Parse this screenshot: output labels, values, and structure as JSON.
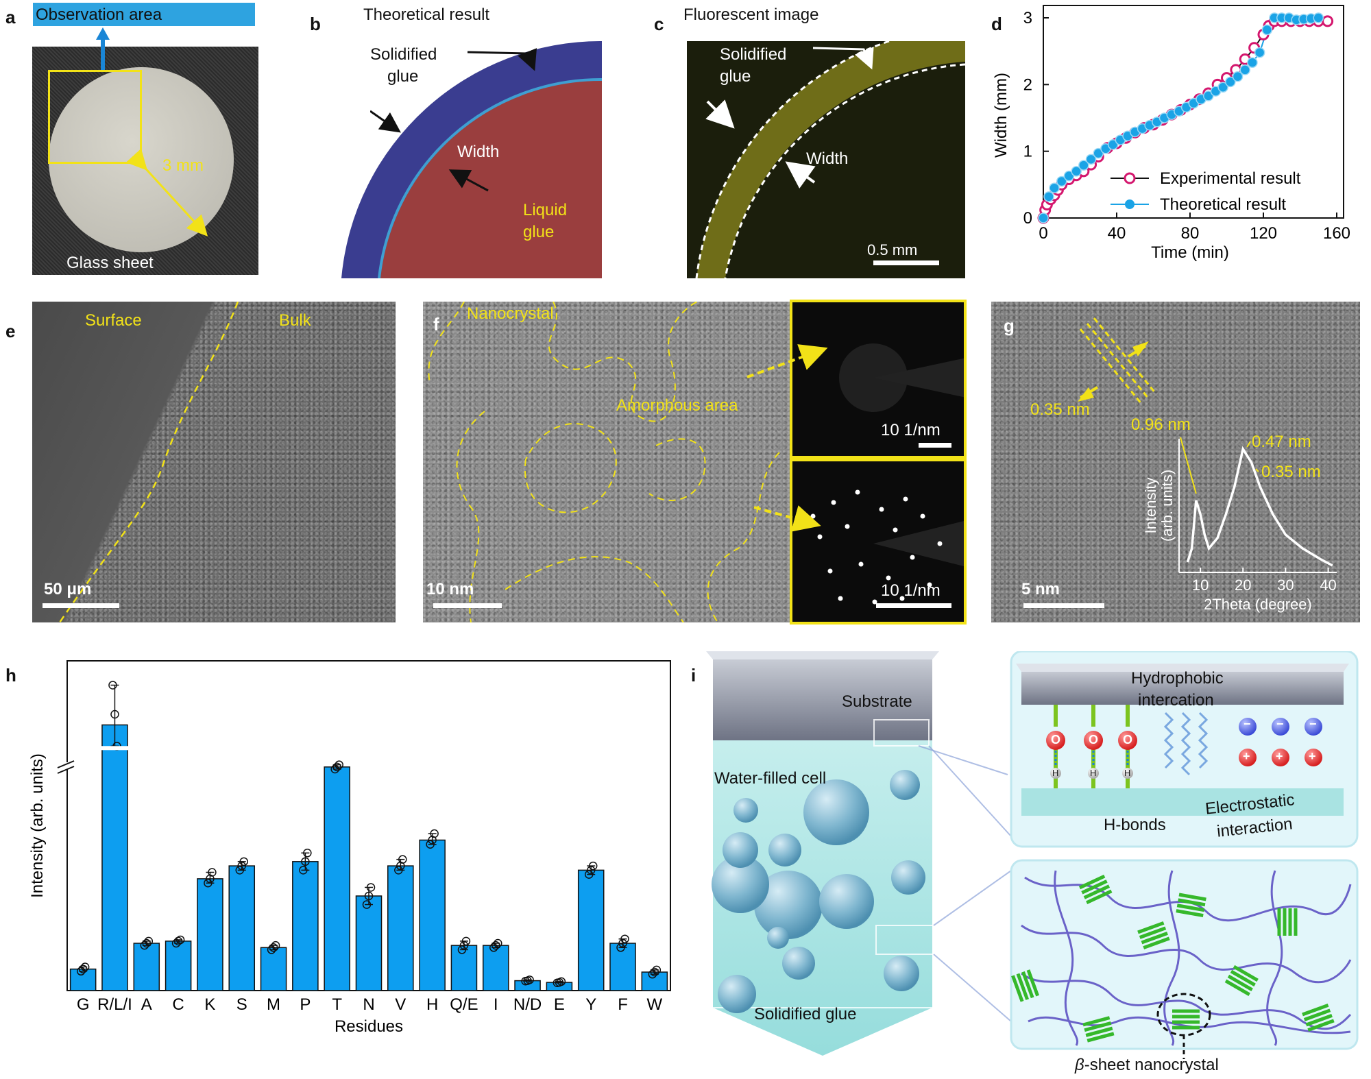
{
  "panels": {
    "a": {
      "label": "a",
      "obs_area": "Observation area",
      "radius": "3 mm",
      "sheet": "Glass sheet"
    },
    "b": {
      "label": "b",
      "title": "Theoretical result",
      "solidified": [
        "Solidified",
        "glue"
      ],
      "width": "Width",
      "liquid": [
        "Liquid",
        "glue"
      ]
    },
    "c": {
      "label": "c",
      "title": "Fluorescent image",
      "solidified": [
        "Solidified",
        "glue"
      ],
      "width": "Width",
      "scalebar": "0.5 mm"
    },
    "d": {
      "label": "d"
    },
    "e": {
      "label": "e",
      "surface": "Surface",
      "bulk": "Bulk",
      "scalebar": "50 μm"
    },
    "f": {
      "label": "f",
      "nanocrystal": "Nanocrystal",
      "amorphous": "Amorphous area",
      "scalebar": "10 nm",
      "saed_top": "10 1/nm",
      "saed_bottom": "10 1/nm"
    },
    "g": {
      "label": "g",
      "spacing_main": "0.35 nm",
      "peak1": "0.96 nm",
      "peak2": "0.47 nm",
      "peak3": "0.35 nm",
      "inset_ylabel": [
        "Intensity",
        "(arb. units)"
      ],
      "inset_xlabel": "2Theta (degree)",
      "inset_ticks": [
        "10",
        "20",
        "30",
        "40"
      ],
      "scalebar": "5 nm"
    },
    "h": {
      "label": "h"
    },
    "i": {
      "label": "i",
      "substrate": "Substrate",
      "water_cell": "Water-filled cell",
      "solid_glue": "Solidified glue",
      "hydrophobic": [
        "Hydrophobic",
        "intercation"
      ],
      "hbonds": "H-bonds",
      "electrostatic": [
        "Electrostatic",
        "interaction"
      ],
      "beta_sheet": "-sheet nanocrystal",
      "beta_symbol": "β",
      "atom_o": "O",
      "atom_h": "H",
      "minus": "−",
      "plus": "+"
    }
  },
  "chart_data": [
    {
      "panel": "d",
      "type": "line",
      "xlabel": "Time (min)",
      "ylabel": "Width (mm)",
      "xlim": [
        0,
        160
      ],
      "ylim": [
        0,
        3
      ],
      "xticks": [
        0,
        40,
        80,
        120,
        160
      ],
      "yticks": [
        0,
        1,
        2,
        3
      ],
      "legend_position": "bottom-right",
      "series": [
        {
          "name": "Experimental result",
          "color": "#d4176e",
          "marker": "open-circle",
          "x": [
            0,
            1,
            2,
            4,
            6,
            8,
            10,
            14,
            18,
            22,
            26,
            30,
            35,
            40,
            45,
            50,
            55,
            60,
            65,
            70,
            75,
            80,
            85,
            90,
            95,
            100,
            105,
            110,
            115,
            120,
            123,
            126,
            130,
            135,
            140,
            145,
            150,
            155
          ],
          "y": [
            0,
            0.12,
            0.2,
            0.28,
            0.34,
            0.42,
            0.5,
            0.58,
            0.64,
            0.7,
            0.8,
            0.92,
            1.05,
            1.12,
            1.2,
            1.28,
            1.35,
            1.4,
            1.47,
            1.55,
            1.62,
            1.7,
            1.78,
            1.87,
            2.0,
            2.1,
            2.22,
            2.38,
            2.55,
            2.75,
            2.88,
            2.95,
            2.95,
            2.95,
            2.95,
            2.95,
            2.95,
            2.95
          ]
        },
        {
          "name": "Theoretical result",
          "color": "#1aa3e6",
          "marker": "filled-circle",
          "x": [
            0,
            3,
            6,
            10,
            14,
            18,
            22,
            26,
            30,
            34,
            38,
            42,
            46,
            50,
            54,
            58,
            62,
            66,
            70,
            74,
            78,
            82,
            86,
            90,
            94,
            98,
            102,
            106,
            110,
            114,
            118,
            122,
            126,
            130,
            134,
            138,
            142,
            146,
            150
          ],
          "y": [
            0,
            0.32,
            0.45,
            0.55,
            0.63,
            0.7,
            0.79,
            0.88,
            0.97,
            1.04,
            1.1,
            1.17,
            1.23,
            1.29,
            1.34,
            1.39,
            1.44,
            1.5,
            1.55,
            1.6,
            1.66,
            1.72,
            1.78,
            1.83,
            1.9,
            1.96,
            2.04,
            2.12,
            2.22,
            2.33,
            2.48,
            2.82,
            3.0,
            3.0,
            3.0,
            2.97,
            2.98,
            2.99,
            3.0
          ]
        }
      ]
    },
    {
      "panel": "h",
      "type": "bar",
      "xlabel": "Residues",
      "ylabel": "Intensity (arb. units)",
      "axis_break": true,
      "color": "#0d9ef0",
      "categories": [
        "G",
        "R/L/I",
        "A",
        "C",
        "K",
        "S",
        "M",
        "P",
        "T",
        "N",
        "V",
        "H",
        "Q/E",
        "I",
        "N/D",
        "E",
        "Y",
        "F",
        "W"
      ],
      "values": [
        0.5,
        6.6,
        1.1,
        1.15,
        2.6,
        2.9,
        1.0,
        3.0,
        5.2,
        2.2,
        2.9,
        3.5,
        1.05,
        1.05,
        0.23,
        0.19,
        2.8,
        1.1,
        0.43
      ],
      "points": [
        [
          0.45,
          0.5,
          0.55
        ],
        [
          8.1,
          7.0,
          5.8
        ],
        [
          1.05,
          1.1,
          1.15
        ],
        [
          1.1,
          1.15,
          1.18
        ],
        [
          2.5,
          2.6,
          2.75
        ],
        [
          2.8,
          2.9,
          3.0
        ],
        [
          0.95,
          1.0,
          1.05
        ],
        [
          2.8,
          3.0,
          3.2
        ],
        [
          5.15,
          5.2,
          5.25
        ],
        [
          2.0,
          2.2,
          2.4
        ],
        [
          2.8,
          2.9,
          3.05
        ],
        [
          3.4,
          3.5,
          3.65
        ],
        [
          0.95,
          1.05,
          1.15
        ],
        [
          1.0,
          1.05,
          1.1
        ],
        [
          0.22,
          0.23,
          0.25
        ],
        [
          0.18,
          0.19,
          0.21
        ],
        [
          2.7,
          2.8,
          2.9
        ],
        [
          1.0,
          1.1,
          1.2
        ],
        [
          0.38,
          0.43,
          0.48
        ]
      ]
    }
  ]
}
